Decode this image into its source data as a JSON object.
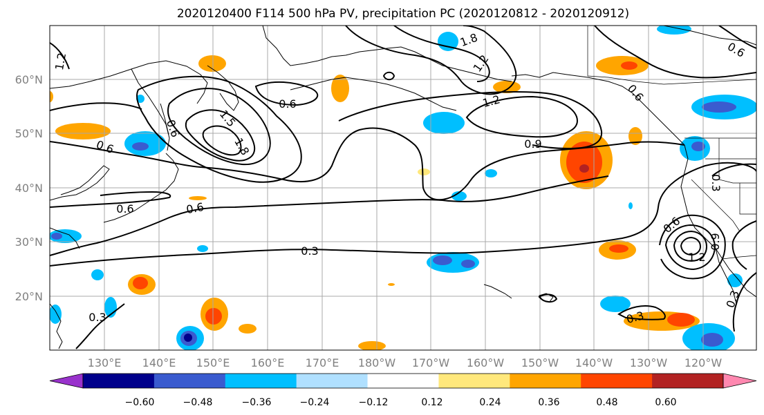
{
  "title": "2020120400 F114 500 hPa PV, precipitation PC (2020120812 - 2020120912)",
  "lat_labels": [
    "60°N",
    "50°N",
    "40°N",
    "30°N",
    "20°N"
  ],
  "lon_labels": [
    "130°E",
    "140°E",
    "150°E",
    "160°E",
    "170°E",
    "180°W",
    "170°W",
    "160°W",
    "150°W",
    "140°W",
    "130°W",
    "120°W"
  ],
  "contour_labels": [
    "1.2",
    "0.6",
    "0.6",
    "1.5",
    "1.8",
    "0.6",
    "0.6",
    "0.6",
    "0.3",
    "0.3",
    "0.9",
    "1.2",
    "1.2",
    "0.6",
    "0.3",
    "0.6",
    "0.9",
    "1.2",
    "0.3",
    "0.3",
    "0.6",
    "1.8"
  ],
  "colorbar": {
    "ticks": [
      "−0.60",
      "−0.48",
      "−0.36",
      "−0.24",
      "−0.12",
      "0.12",
      "0.24",
      "0.36",
      "0.48",
      "0.60"
    ],
    "colors": [
      "#9932cc",
      "#00008b",
      "#3a5bcf",
      "#00bfff",
      "#b0e0ff",
      "#ffffff",
      "#ffe87c",
      "#ffa500",
      "#ff4500",
      "#b22222",
      "#ff88b0"
    ]
  }
}
